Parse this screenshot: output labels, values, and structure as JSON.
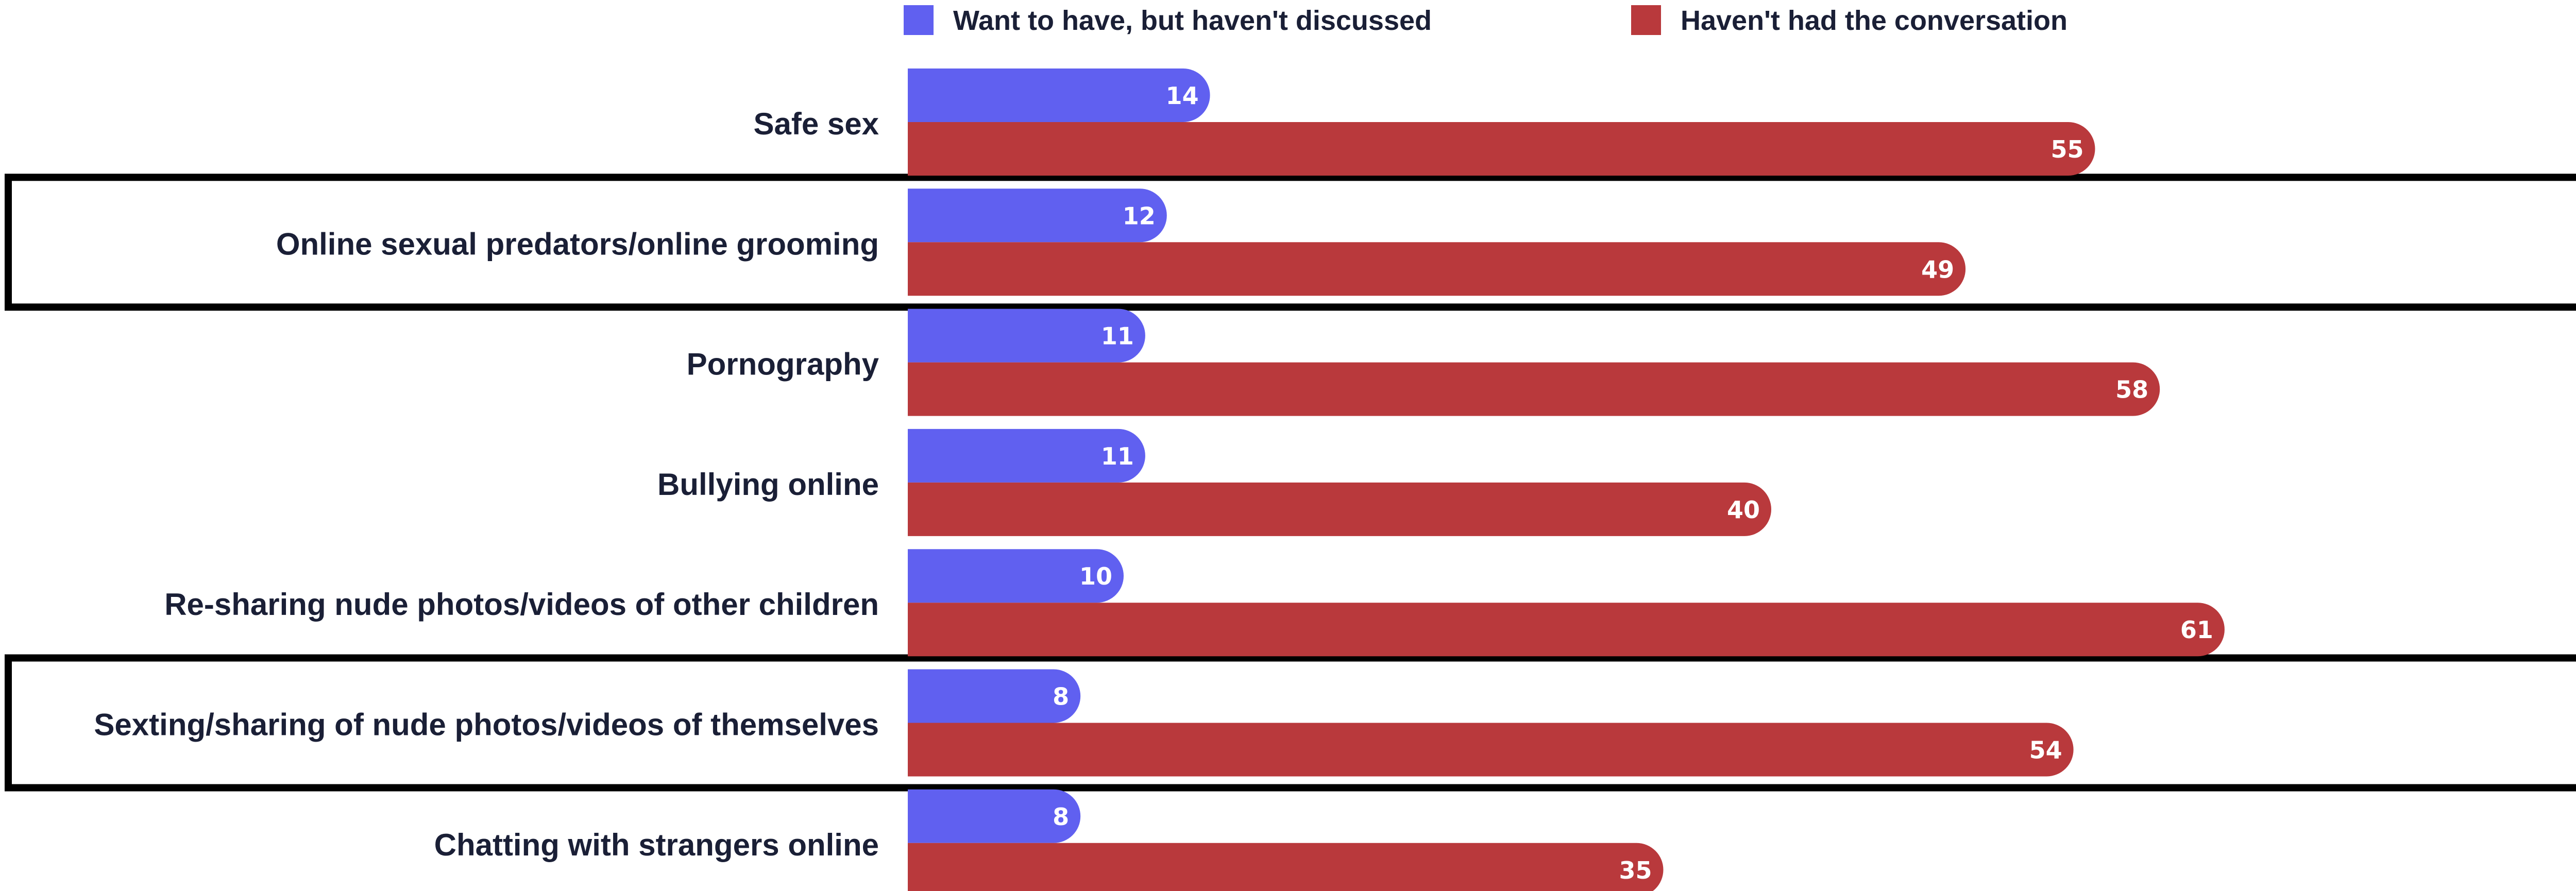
{
  "chart_data": {
    "type": "bar",
    "orientation": "horizontal",
    "legend_position": "top",
    "categories": [
      "Safe sex",
      "Online sexual predators/online grooming",
      "Pornography",
      "Bullying online",
      "Re-sharing nude photos/videos of other children",
      "Sexting/sharing of nude photos/videos of themselves",
      "Chatting with strangers online"
    ],
    "series": [
      {
        "name": "Want to have, but haven't discussed",
        "color": "#6060f0",
        "values": [
          14,
          12,
          11,
          11,
          10,
          8,
          8
        ]
      },
      {
        "name": "Haven't had the conversation",
        "color": "#b9393c",
        "values": [
          55,
          49,
          58,
          40,
          61,
          54,
          35
        ]
      }
    ],
    "highlighted_categories": [
      "Online sexual predators/online grooming",
      "Sexting/sharing of nude photos/videos of themselves"
    ],
    "xlim": [
      0,
      100
    ],
    "grid": false
  }
}
